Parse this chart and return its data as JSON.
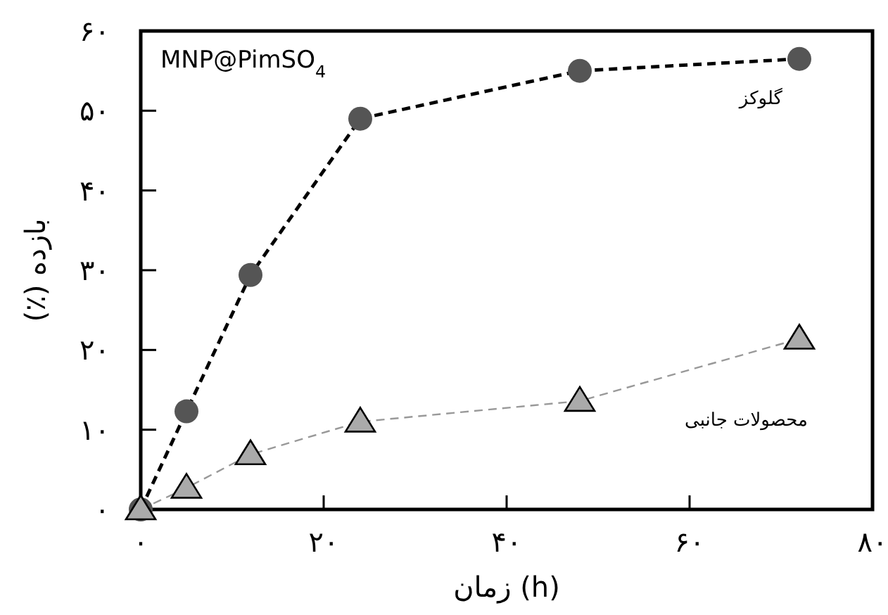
{
  "chart_data": {
    "type": "line",
    "xlabel": "زمان (h)",
    "ylabel": "بازده (٪)",
    "annotations": [
      "MNP@PimSO$_{4}$"
    ],
    "series": [
      {
        "name": "گلوکز",
        "color": "#555555",
        "marker": "circle",
        "line_style": "dashed",
        "x": [
          0,
          5,
          12,
          24,
          48,
          72
        ],
        "values": [
          0,
          12.3,
          29.4,
          49.0,
          55.0,
          56.5
        ]
      },
      {
        "name": "محصولات جانبی",
        "color": "#aaaaaa",
        "marker": "triangle",
        "line_style": "dashed",
        "x": [
          0,
          5,
          12,
          24,
          48,
          72
        ],
        "values": [
          0,
          2.7,
          6.9,
          11.0,
          13.6,
          21.4
        ]
      }
    ],
    "xlim": [
      0,
      80
    ],
    "ylim": [
      0,
      60
    ],
    "xticks": [
      {
        "value": 0,
        "label": "۰"
      },
      {
        "value": 20,
        "label": "۲۰"
      },
      {
        "value": 40,
        "label": "۴۰"
      },
      {
        "value": 60,
        "label": "۶۰"
      },
      {
        "value": 80,
        "label": "۸۰"
      }
    ],
    "yticks": [
      {
        "value": 0,
        "label": "۰"
      },
      {
        "value": 10,
        "label": "۱۰"
      },
      {
        "value": 20,
        "label": "۲۰"
      },
      {
        "value": 30,
        "label": "۳۰"
      },
      {
        "value": 40,
        "label": "۴۰"
      },
      {
        "value": 50,
        "label": "۵۰"
      },
      {
        "value": 60,
        "label": "۶۰"
      }
    ],
    "grid": false
  }
}
